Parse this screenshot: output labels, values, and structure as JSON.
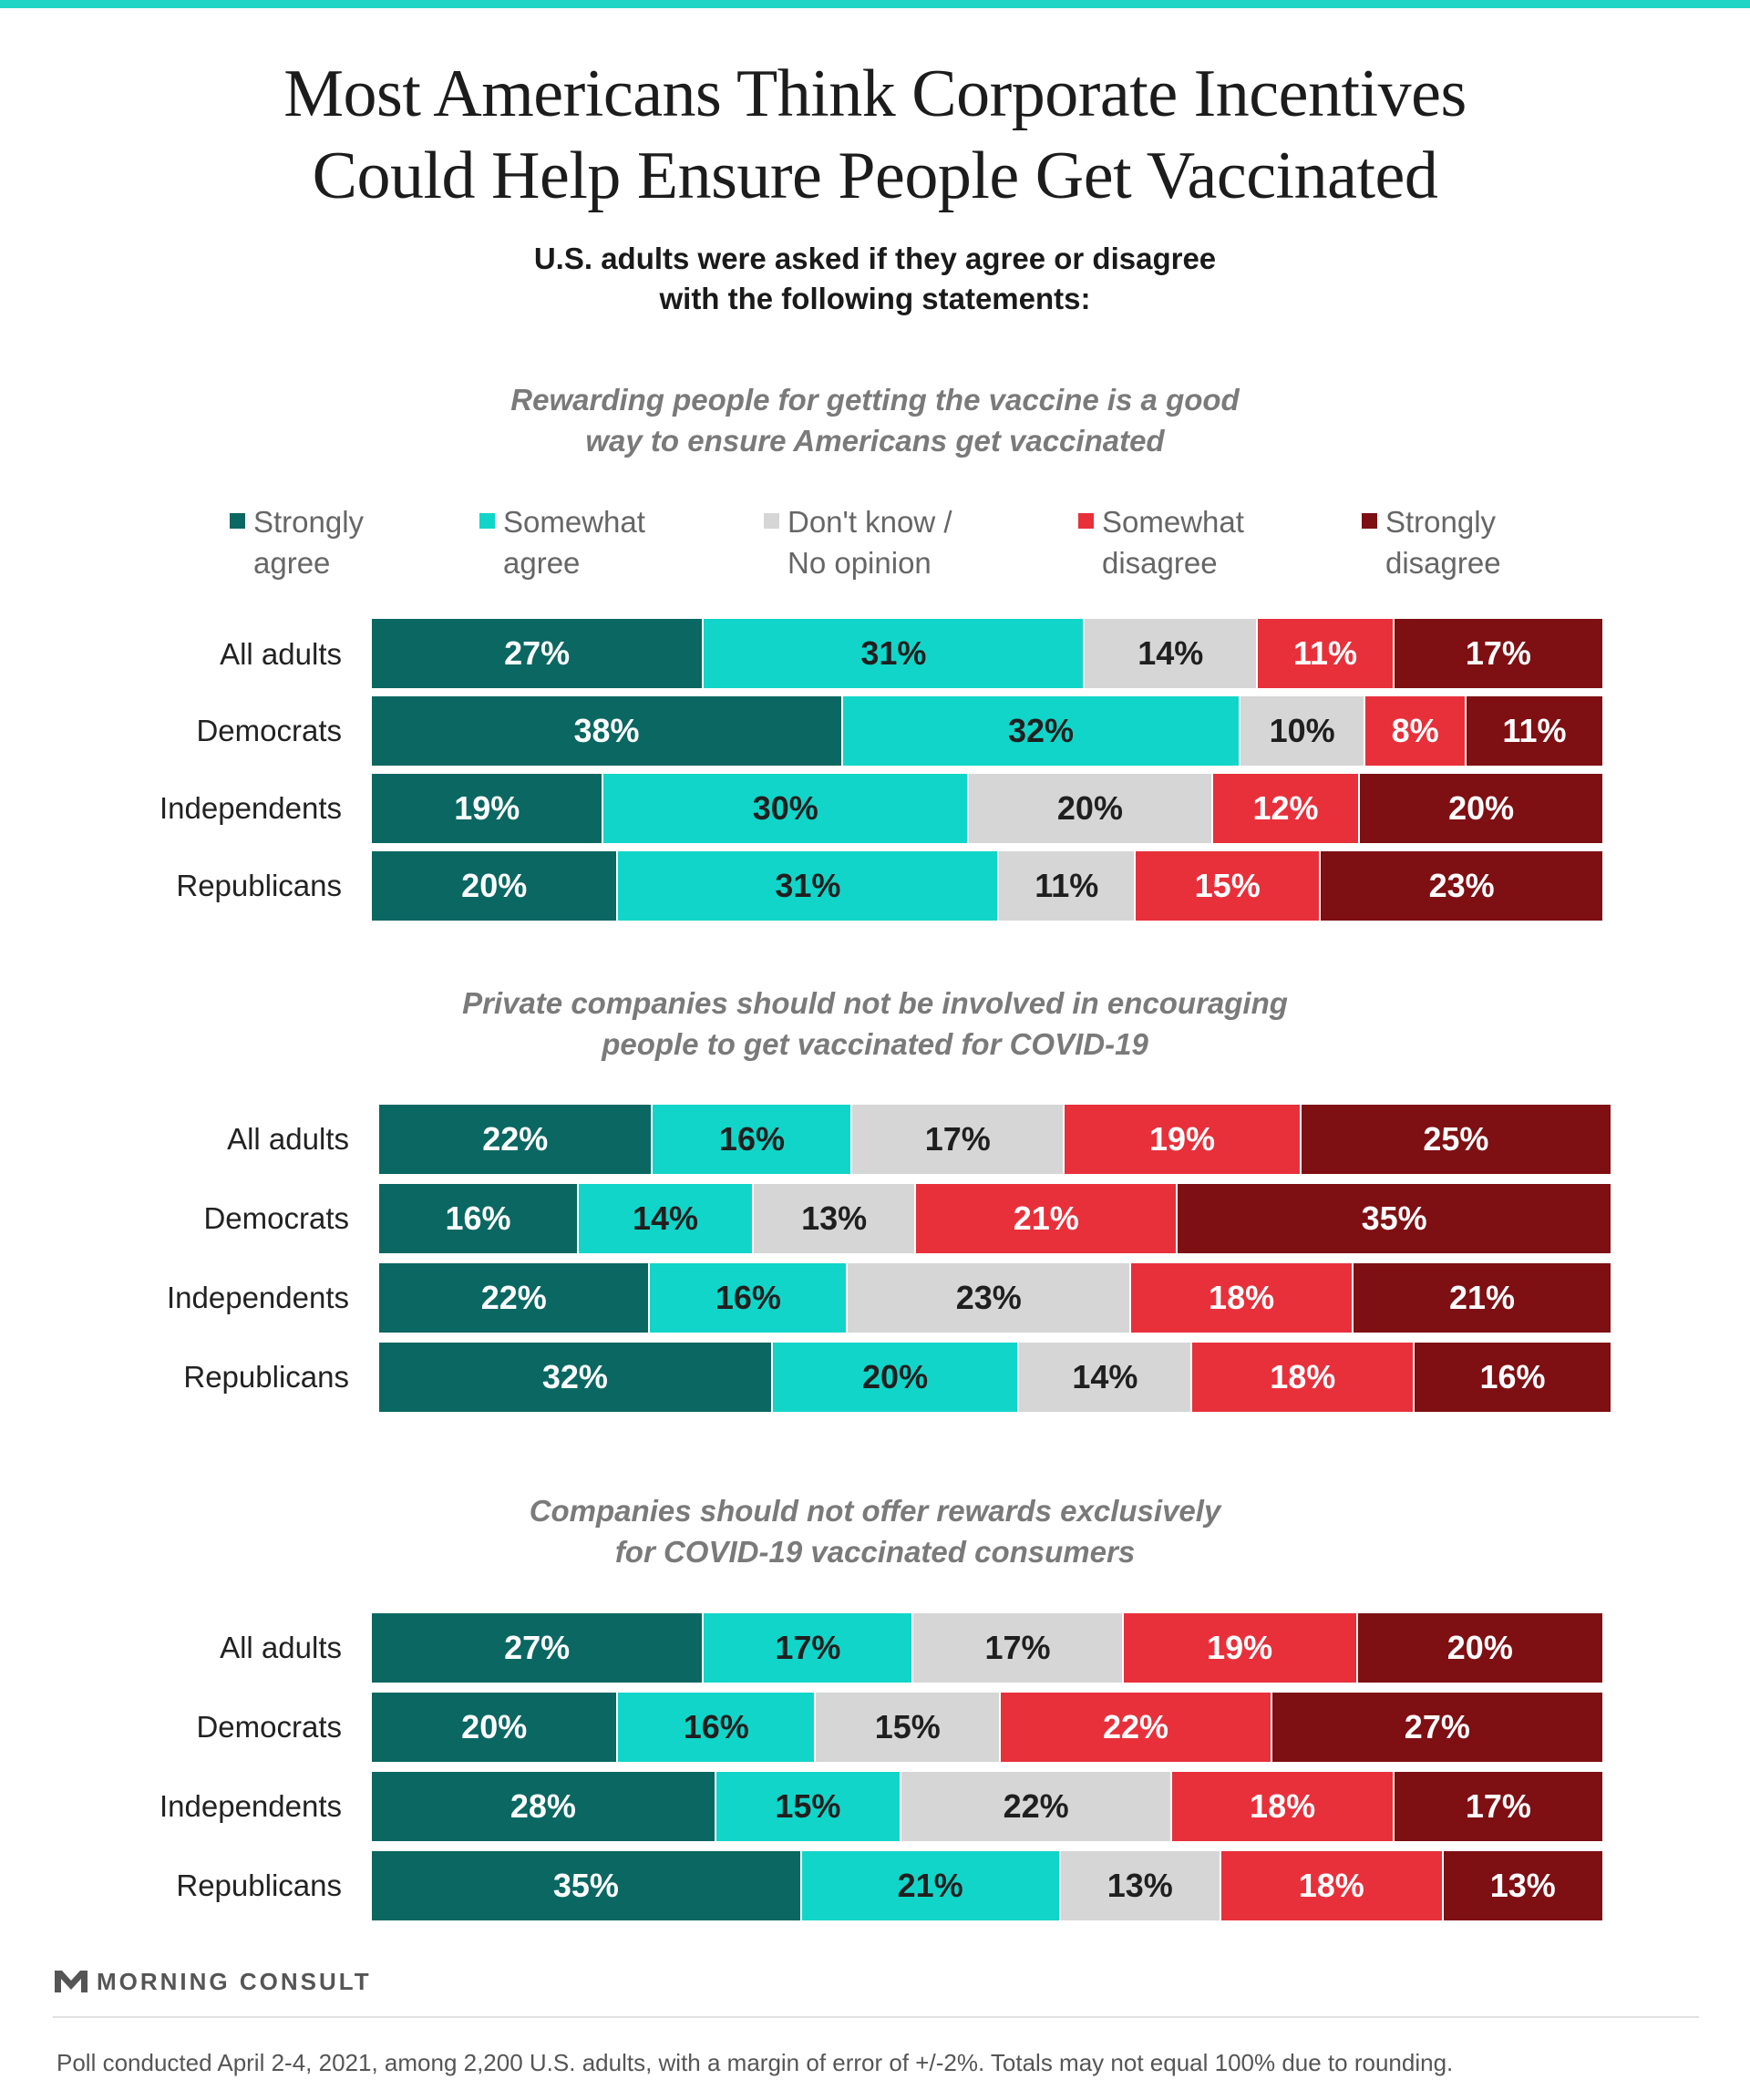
{
  "title_lines": [
    "Most Americans Think Corporate Incentives",
    "Could Help Ensure People Get Vaccinated"
  ],
  "subtitle_lines": [
    "U.S. adults were asked if they agree or disagree",
    "with the following statements:"
  ],
  "legend": [
    {
      "lines": [
        "Strongly",
        "agree"
      ],
      "color": "#0a6762"
    },
    {
      "lines": [
        "Somewhat",
        "agree"
      ],
      "color": "#12d5c9"
    },
    {
      "lines": [
        "Don't know /",
        "No opinion"
      ],
      "color": "#d6d6d6"
    },
    {
      "lines": [
        "Somewhat",
        "disagree"
      ],
      "color": "#e8303b"
    },
    {
      "lines": [
        "Strongly",
        "disagree"
      ],
      "color": "#7e0f13"
    }
  ],
  "label_colors": [
    "#ffffff",
    "#1f1f1f",
    "#1f1f1f",
    "#ffffff",
    "#ffffff"
  ],
  "chart_data": {
    "type": "bar",
    "stacked": true,
    "orientation": "horizontal",
    "series_names": [
      "Strongly agree",
      "Somewhat agree",
      "Don't know / No opinion",
      "Somewhat disagree",
      "Strongly disagree"
    ],
    "panels": [
      {
        "title_lines": [
          "Rewarding people for getting the vaccine is a good",
          "way to ensure Americans get vaccinated"
        ],
        "categories": [
          "All adults",
          "Democrats",
          "Independents",
          "Republicans"
        ],
        "values": [
          [
            27,
            31,
            14,
            11,
            17
          ],
          [
            38,
            32,
            10,
            8,
            11
          ],
          [
            19,
            30,
            20,
            12,
            20
          ],
          [
            20,
            31,
            11,
            15,
            23
          ]
        ]
      },
      {
        "title_lines": [
          "Private companies should not be involved in encouraging",
          "people to get vaccinated for COVID-19"
        ],
        "categories": [
          "All adults",
          "Democrats",
          "Independents",
          "Republicans"
        ],
        "values": [
          [
            22,
            16,
            17,
            19,
            25
          ],
          [
            16,
            14,
            13,
            21,
            35
          ],
          [
            22,
            16,
            23,
            18,
            21
          ],
          [
            32,
            20,
            14,
            18,
            16
          ]
        ]
      },
      {
        "title_lines": [
          "Companies should not offer rewards exclusively",
          "for COVID-19 vaccinated consumers"
        ],
        "categories": [
          "All adults",
          "Democrats",
          "Independents",
          "Republicans"
        ],
        "values": [
          [
            27,
            17,
            17,
            19,
            20
          ],
          [
            20,
            16,
            15,
            22,
            27
          ],
          [
            28,
            15,
            22,
            18,
            17
          ],
          [
            35,
            21,
            13,
            18,
            13
          ]
        ]
      }
    ]
  },
  "logo_text": "MORNING CONSULT",
  "footnote": "Poll conducted April 2-4, 2021, among 2,200 U.S. adults, with a margin of error of +/-2%. Totals may not equal 100% due to rounding."
}
